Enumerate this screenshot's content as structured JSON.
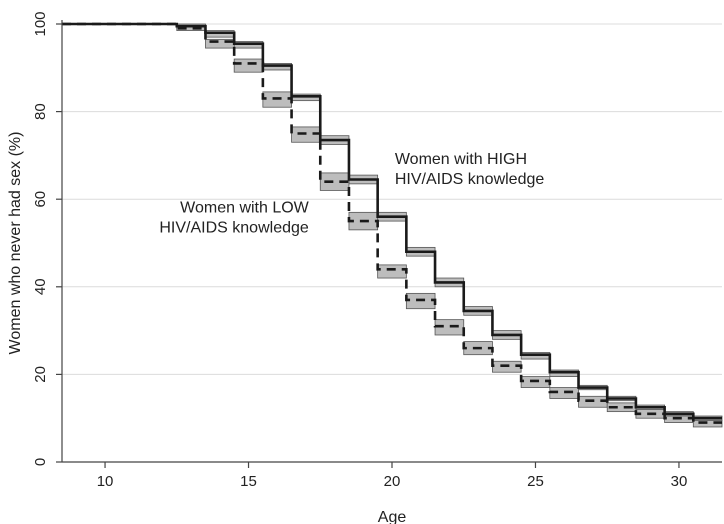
{
  "chart_data": {
    "type": "line",
    "step": true,
    "xlabel": "Age",
    "ylabel": "Women who never had sex (%)",
    "xlim": [
      8.5,
      31.5
    ],
    "ylim": [
      0,
      100
    ],
    "xticks": [
      10,
      15,
      20,
      25,
      30
    ],
    "yticks": [
      0,
      20,
      40,
      60,
      80,
      100
    ],
    "grid": "horizontal",
    "series": [
      {
        "style": "solid",
        "x": [
          8.5,
          11.5,
          12.5,
          13.5,
          14.5,
          15.5,
          16.5,
          17.5,
          18.5,
          19.5,
          20.5,
          21.5,
          22.5,
          23.5,
          24.5,
          25.5,
          26.5,
          27.5,
          28.5,
          29.5,
          30.5,
          31.5
        ],
        "y": [
          100,
          100,
          99.5,
          98,
          95.5,
          90.5,
          83.5,
          73.5,
          64.5,
          56,
          48,
          41,
          34.5,
          29,
          24.5,
          20.5,
          17,
          14.5,
          12.5,
          11,
          10,
          9.5
        ],
        "ci_low": [
          100,
          100,
          99,
          97,
          94.5,
          89.5,
          82.5,
          72.5,
          63.5,
          55,
          47,
          40,
          33.5,
          28,
          23.5,
          19.5,
          16.5,
          14,
          12,
          10.5,
          9.5,
          9
        ],
        "ci_high": [
          100,
          100,
          100,
          98.5,
          96,
          91,
          84,
          74.5,
          65.5,
          57,
          49,
          42,
          35.5,
          30,
          25,
          21,
          17.5,
          15,
          13,
          11.5,
          10.5,
          10
        ]
      },
      {
        "style": "dashed",
        "x": [
          8.5,
          11.5,
          12.5,
          13.5,
          14.5,
          15.5,
          16.5,
          17.5,
          18.5,
          19.5,
          20.5,
          21.5,
          22.5,
          23.5,
          24.5,
          25.5,
          26.5,
          27.5,
          28.5,
          29.5,
          30.5,
          31.5
        ],
        "y": [
          100,
          100,
          99,
          96,
          91,
          83,
          75,
          64,
          55,
          44,
          37,
          31,
          26,
          22,
          18.5,
          16,
          14,
          12.5,
          11,
          10,
          9,
          8.5
        ],
        "ci_low": [
          100,
          100,
          98.5,
          94.5,
          89,
          81,
          73,
          62,
          53,
          42,
          35,
          29,
          24.5,
          20.5,
          17,
          14.5,
          12.5,
          11.5,
          10,
          9,
          8,
          7.5
        ],
        "ci_high": [
          100,
          100,
          99.5,
          96.5,
          92,
          84.5,
          76.5,
          66,
          57,
          45,
          38.5,
          32.5,
          27.5,
          23,
          19.5,
          17,
          15,
          13.5,
          12,
          10.5,
          9.5,
          9
        ]
      }
    ],
    "annotations": [
      {
        "lines": [
          "Women with HIGH",
          "HIV/AIDS knowledge"
        ],
        "x": 20.1,
        "y": 68,
        "anchor": "start"
      },
      {
        "lines": [
          "Women with LOW",
          "HIV/AIDS knowledge"
        ],
        "x": 17.1,
        "y": 57,
        "anchor": "end"
      }
    ]
  }
}
